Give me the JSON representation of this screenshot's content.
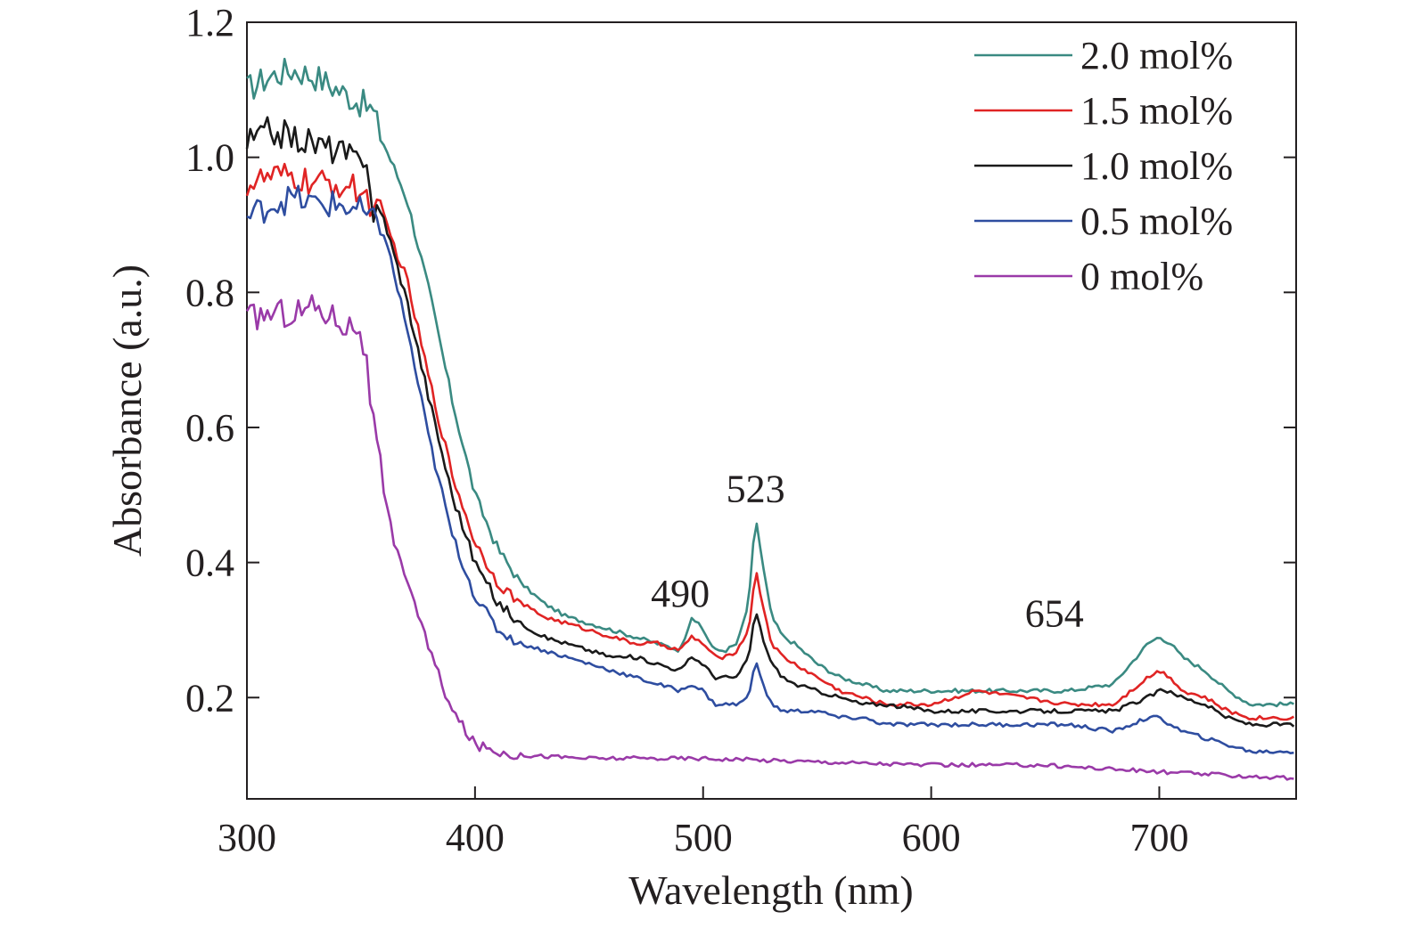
{
  "chart_data": {
    "type": "line",
    "xlabel": "Wavelength (nm)",
    "ylabel": "Absorbance (a.u.)",
    "xlim": [
      300,
      760
    ],
    "ylim": [
      0.05,
      1.2
    ],
    "x_ticks": [
      300,
      400,
      500,
      600,
      700
    ],
    "y_ticks": [
      0.2,
      0.4,
      0.6,
      0.8,
      1.0,
      1.2
    ],
    "x_tick_labels": [
      "300",
      "400",
      "500",
      "600",
      "700"
    ],
    "y_tick_labels": [
      "0.2",
      "0.4",
      "0.6",
      "0.8",
      "1.0",
      "1.2"
    ],
    "grid": false,
    "legend_position": "top-right",
    "annotations": [
      {
        "text": "490",
        "x": 490,
        "y": 0.335
      },
      {
        "text": "523",
        "x": 523,
        "y": 0.49
      },
      {
        "text": "654",
        "x": 654,
        "y": 0.305
      }
    ],
    "series": [
      {
        "name": "2.0 mol%",
        "color": "#3a8a82",
        "x": [
          300,
          310,
          320,
          330,
          340,
          350,
          355,
          360,
          370,
          380,
          390,
          400,
          410,
          420,
          430,
          440,
          450,
          460,
          470,
          480,
          490,
          495,
          500,
          505,
          510,
          515,
          520,
          523,
          526,
          530,
          535,
          540,
          550,
          560,
          570,
          580,
          600,
          620,
          640,
          660,
          680,
          695,
          700,
          705,
          710,
          720,
          730,
          740,
          750,
          760
        ],
        "y": [
          1.1,
          1.12,
          1.13,
          1.12,
          1.1,
          1.08,
          1.07,
          1.02,
          0.94,
          0.8,
          0.64,
          0.5,
          0.42,
          0.37,
          0.34,
          0.32,
          0.31,
          0.3,
          0.29,
          0.28,
          0.27,
          0.32,
          0.3,
          0.27,
          0.27,
          0.28,
          0.34,
          0.47,
          0.4,
          0.32,
          0.29,
          0.28,
          0.25,
          0.23,
          0.22,
          0.21,
          0.21,
          0.21,
          0.21,
          0.21,
          0.22,
          0.28,
          0.29,
          0.28,
          0.26,
          0.24,
          0.21,
          0.19,
          0.19,
          0.19
        ]
      },
      {
        "name": "1.5 mol%",
        "color": "#e02424",
        "x": [
          300,
          310,
          320,
          330,
          340,
          350,
          355,
          360,
          370,
          380,
          390,
          400,
          410,
          420,
          430,
          440,
          450,
          460,
          470,
          480,
          490,
          495,
          500,
          505,
          510,
          515,
          520,
          523,
          526,
          530,
          535,
          540,
          550,
          560,
          570,
          580,
          600,
          620,
          640,
          660,
          680,
          695,
          700,
          705,
          710,
          720,
          730,
          740,
          750,
          760
        ],
        "y": [
          0.96,
          0.97,
          0.97,
          0.96,
          0.96,
          0.95,
          0.93,
          0.91,
          0.82,
          0.67,
          0.53,
          0.43,
          0.37,
          0.34,
          0.32,
          0.31,
          0.3,
          0.29,
          0.28,
          0.28,
          0.27,
          0.29,
          0.28,
          0.26,
          0.26,
          0.27,
          0.3,
          0.39,
          0.34,
          0.28,
          0.26,
          0.25,
          0.23,
          0.21,
          0.2,
          0.19,
          0.19,
          0.21,
          0.2,
          0.19,
          0.19,
          0.23,
          0.24,
          0.23,
          0.21,
          0.2,
          0.18,
          0.17,
          0.17,
          0.17
        ]
      },
      {
        "name": "1.0 mol%",
        "color": "#1a1a1a",
        "x": [
          300,
          310,
          320,
          330,
          340,
          350,
          352,
          355,
          360,
          370,
          380,
          390,
          400,
          410,
          420,
          430,
          440,
          450,
          460,
          470,
          480,
          490,
          495,
          500,
          505,
          510,
          515,
          520,
          523,
          526,
          530,
          535,
          540,
          550,
          560,
          570,
          580,
          600,
          620,
          640,
          660,
          680,
          695,
          700,
          705,
          710,
          720,
          730,
          740,
          750,
          760
        ],
        "y": [
          1.02,
          1.04,
          1.03,
          1.02,
          1.01,
          0.99,
          1.02,
          0.92,
          0.91,
          0.79,
          0.64,
          0.5,
          0.4,
          0.34,
          0.31,
          0.29,
          0.28,
          0.27,
          0.26,
          0.26,
          0.25,
          0.24,
          0.26,
          0.25,
          0.23,
          0.23,
          0.23,
          0.26,
          0.33,
          0.29,
          0.25,
          0.23,
          0.22,
          0.21,
          0.2,
          0.19,
          0.19,
          0.18,
          0.18,
          0.18,
          0.18,
          0.18,
          0.2,
          0.21,
          0.21,
          0.2,
          0.19,
          0.17,
          0.16,
          0.16,
          0.16
        ]
      },
      {
        "name": "0.5 mol%",
        "color": "#2e4da0",
        "x": [
          300,
          310,
          320,
          330,
          340,
          350,
          360,
          370,
          380,
          390,
          400,
          410,
          420,
          430,
          440,
          450,
          460,
          470,
          480,
          490,
          495,
          500,
          505,
          510,
          515,
          520,
          523,
          526,
          530,
          535,
          540,
          550,
          560,
          570,
          580,
          600,
          620,
          640,
          660,
          680,
          695,
          700,
          705,
          710,
          720,
          730,
          740,
          750,
          760
        ],
        "y": [
          0.91,
          0.93,
          0.94,
          0.93,
          0.93,
          0.92,
          0.89,
          0.75,
          0.58,
          0.44,
          0.35,
          0.3,
          0.28,
          0.27,
          0.26,
          0.25,
          0.24,
          0.23,
          0.22,
          0.21,
          0.22,
          0.21,
          0.19,
          0.19,
          0.19,
          0.2,
          0.26,
          0.22,
          0.19,
          0.18,
          0.18,
          0.18,
          0.17,
          0.17,
          0.16,
          0.16,
          0.16,
          0.16,
          0.16,
          0.15,
          0.17,
          0.17,
          0.16,
          0.15,
          0.14,
          0.13,
          0.12,
          0.12,
          0.12
        ]
      },
      {
        "name": "0 mol%",
        "color": "#9a3aa8",
        "x": [
          300,
          310,
          320,
          330,
          340,
          345,
          350,
          352,
          355,
          358,
          360,
          365,
          370,
          380,
          390,
          400,
          410,
          420,
          450,
          500,
          550,
          600,
          650,
          700,
          760
        ],
        "y": [
          0.76,
          0.77,
          0.77,
          0.78,
          0.76,
          0.75,
          0.75,
          0.7,
          0.62,
          0.55,
          0.5,
          0.42,
          0.38,
          0.27,
          0.18,
          0.13,
          0.12,
          0.115,
          0.11,
          0.11,
          0.105,
          0.1,
          0.1,
          0.09,
          0.08
        ]
      }
    ]
  }
}
